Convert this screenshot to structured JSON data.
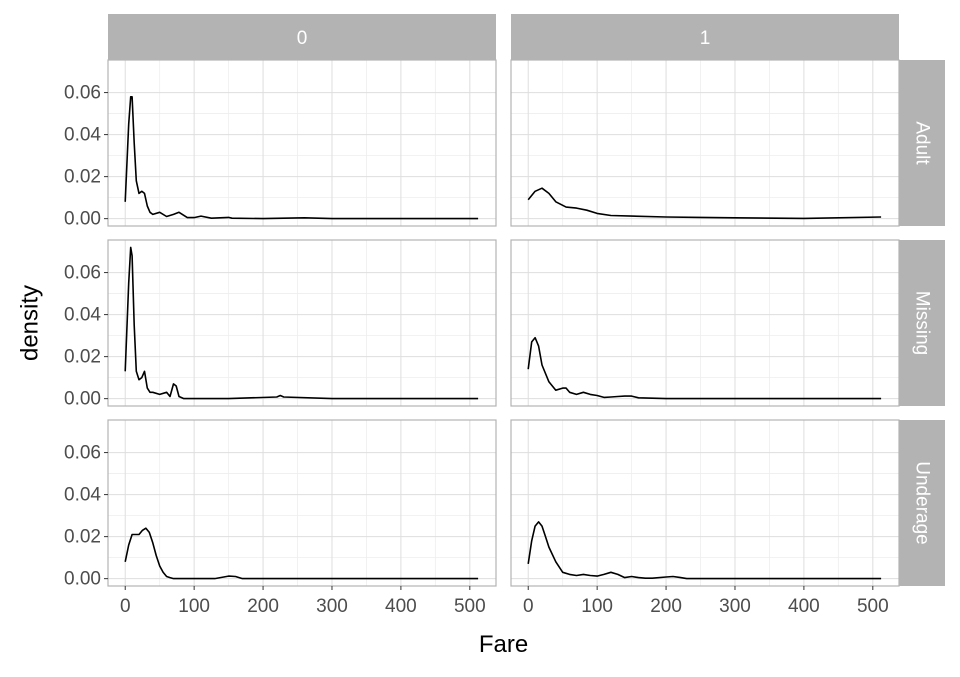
{
  "chart_data": {
    "type": "line",
    "xlabel": "Fare",
    "ylabel": "density",
    "x_ticks": [
      0,
      100,
      200,
      300,
      400,
      500
    ],
    "y_ticks": [
      0.0,
      0.02,
      0.04,
      0.06
    ],
    "y_tick_labels": [
      "0.00",
      "0.02",
      "0.04",
      "0.06"
    ],
    "xlim": [
      -25,
      538
    ],
    "ylim": [
      -0.0035,
      0.0755
    ],
    "grid": true,
    "col_strips": [
      "0",
      "1"
    ],
    "row_strips": [
      "Adult",
      "Missing",
      "Underage"
    ],
    "panels": [
      {
        "col": "0",
        "row": "Adult",
        "x": [
          0,
          5,
          8,
          10,
          13,
          16,
          20,
          24,
          28,
          32,
          36,
          40,
          50,
          60,
          70,
          78,
          90,
          100,
          110,
          125,
          150,
          155,
          200,
          260,
          300,
          400,
          512
        ],
        "y": [
          0.008,
          0.045,
          0.058,
          0.058,
          0.036,
          0.018,
          0.012,
          0.013,
          0.012,
          0.006,
          0.003,
          0.002,
          0.003,
          0.001,
          0.002,
          0.003,
          0.0005,
          0.0005,
          0.0012,
          0.0002,
          0.0006,
          0.0002,
          0.0,
          0.0004,
          0.0,
          0.0,
          0.0
        ]
      },
      {
        "col": "1",
        "row": "Adult",
        "x": [
          0,
          10,
          20,
          30,
          40,
          55,
          70,
          85,
          100,
          120,
          150,
          200,
          250,
          300,
          400,
          512
        ],
        "y": [
          0.009,
          0.013,
          0.0145,
          0.012,
          0.008,
          0.0055,
          0.005,
          0.004,
          0.0025,
          0.0015,
          0.0012,
          0.0008,
          0.0006,
          0.0004,
          0.0001,
          0.0008
        ]
      },
      {
        "col": "0",
        "row": "Missing",
        "x": [
          0,
          5,
          8,
          10,
          13,
          16,
          20,
          24,
          28,
          32,
          36,
          40,
          50,
          60,
          65,
          70,
          74,
          78,
          85,
          150,
          220,
          225,
          230,
          300,
          400,
          512
        ],
        "y": [
          0.013,
          0.055,
          0.072,
          0.068,
          0.035,
          0.013,
          0.009,
          0.01,
          0.013,
          0.005,
          0.003,
          0.003,
          0.002,
          0.003,
          0.001,
          0.007,
          0.006,
          0.001,
          0.0,
          0.0,
          0.0008,
          0.0015,
          0.0008,
          0.0,
          0.0,
          0.0
        ]
      },
      {
        "col": "1",
        "row": "Missing",
        "x": [
          0,
          5,
          10,
          15,
          20,
          30,
          40,
          50,
          55,
          60,
          70,
          80,
          90,
          100,
          110,
          120,
          130,
          140,
          150,
          160,
          200,
          300,
          400,
          512
        ],
        "y": [
          0.014,
          0.027,
          0.029,
          0.025,
          0.016,
          0.008,
          0.004,
          0.005,
          0.005,
          0.003,
          0.002,
          0.003,
          0.002,
          0.0015,
          0.0006,
          0.0008,
          0.001,
          0.0012,
          0.0012,
          0.0004,
          0.0,
          0.0,
          0.0,
          0.0
        ]
      },
      {
        "col": "0",
        "row": "Underage",
        "x": [
          0,
          5,
          10,
          15,
          20,
          25,
          30,
          35,
          40,
          45,
          50,
          55,
          60,
          65,
          70,
          80,
          100,
          130,
          150,
          160,
          170,
          200,
          300,
          400,
          512
        ],
        "y": [
          0.008,
          0.016,
          0.021,
          0.021,
          0.021,
          0.023,
          0.024,
          0.022,
          0.017,
          0.011,
          0.006,
          0.003,
          0.001,
          0.0005,
          0.0,
          0.0,
          0.0,
          0.0,
          0.0012,
          0.001,
          0.0,
          0.0,
          0.0,
          0.0,
          0.0
        ]
      },
      {
        "col": "1",
        "row": "Underage",
        "x": [
          0,
          5,
          10,
          15,
          20,
          25,
          30,
          40,
          50,
          60,
          70,
          80,
          90,
          100,
          110,
          120,
          130,
          140,
          150,
          160,
          170,
          180,
          200,
          210,
          220,
          230,
          300,
          400,
          512
        ],
        "y": [
          0.007,
          0.018,
          0.025,
          0.027,
          0.025,
          0.02,
          0.015,
          0.008,
          0.003,
          0.002,
          0.0015,
          0.002,
          0.0015,
          0.0012,
          0.002,
          0.003,
          0.002,
          0.0005,
          0.001,
          0.0005,
          0.0002,
          0.0002,
          0.0008,
          0.001,
          0.0006,
          0.0,
          0.0,
          0.0,
          0.0
        ]
      }
    ]
  }
}
